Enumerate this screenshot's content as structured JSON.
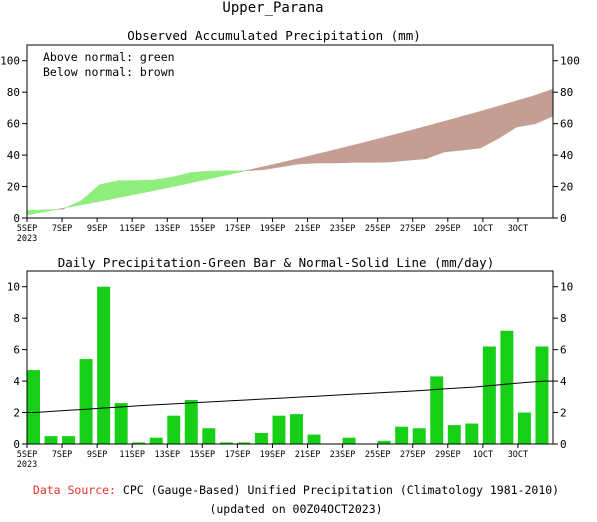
{
  "title": "Upper_Parana",
  "colors": {
    "above": "#90ee7f",
    "below": "#c49d93",
    "bar": "#18cf18",
    "normal_line": "#000000",
    "source_label": "#e8302a"
  },
  "footer": {
    "source_label": "Data Source:",
    "source_text": " CPC (Gauge-Based) Unified Precipitation (Climatology 1981-2010)",
    "updated": "(updated on 00Z04OCT2023)"
  },
  "chart_data": [
    {
      "type": "area",
      "title": "Observed Accumulated Precipitation (mm)",
      "annotations": [
        "Above normal: green",
        "Below normal: brown"
      ],
      "ylim": [
        0,
        110
      ],
      "yticks": [
        0,
        20,
        40,
        60,
        80,
        100
      ],
      "xlim": [
        0,
        30
      ],
      "x_tick_positions": [
        0,
        2,
        4,
        6,
        8,
        10,
        12,
        14,
        16,
        18,
        20,
        22,
        24,
        26,
        28
      ],
      "x_tick_labels": [
        "5SEP",
        "7SEP",
        "9SEP",
        "11SEP",
        "13SEP",
        "15SEP",
        "17SEP",
        "19SEP",
        "21SEP",
        "23SEP",
        "25SEP",
        "27SEP",
        "29SEP",
        "1OCT",
        "3OCT"
      ],
      "x_year_label": "2023",
      "series": [
        {
          "name": "Observed",
          "values": [
            4.7,
            5.2,
            5.7,
            11.1,
            21.1,
            23.7,
            23.8,
            24.2,
            26.0,
            28.8,
            29.8,
            29.9,
            30.0,
            30.7,
            32.5,
            34.4,
            35.0,
            35.0,
            35.4,
            35.4,
            35.6,
            36.7,
            37.7,
            42.0,
            43.2,
            44.5,
            50.7,
            57.9,
            59.9,
            64.8
          ]
        },
        {
          "name": "Normal",
          "values": [
            2.0,
            4.1,
            6.2,
            8.4,
            10.6,
            12.9,
            15.2,
            17.5,
            19.9,
            22.3,
            24.8,
            27.3,
            29.9,
            32.5,
            35.1,
            37.8,
            40.6,
            43.4,
            46.3,
            49.2,
            52.2,
            55.2,
            58.3,
            61.4,
            64.6,
            67.8,
            71.1,
            74.5,
            77.9,
            81.9
          ]
        }
      ]
    },
    {
      "type": "bar",
      "title": "Daily Precipitation-Green Bar & Normal-Solid Line (mm/day)",
      "ylim": [
        0,
        11
      ],
      "yticks": [
        0,
        2,
        4,
        6,
        8,
        10
      ],
      "xlim": [
        0,
        30
      ],
      "x_tick_positions": [
        0,
        2,
        4,
        6,
        8,
        10,
        12,
        14,
        16,
        18,
        20,
        22,
        24,
        26,
        28
      ],
      "x_tick_labels": [
        "5SEP",
        "7SEP",
        "9SEP",
        "11SEP",
        "13SEP",
        "15SEP",
        "17SEP",
        "19SEP",
        "21SEP",
        "23SEP",
        "25SEP",
        "27SEP",
        "29SEP",
        "1OCT",
        "3OCT"
      ],
      "x_year_label": "2023",
      "series": [
        {
          "name": "Daily Precipitation",
          "values": [
            4.7,
            0.5,
            0.5,
            5.4,
            10.0,
            2.6,
            0.1,
            0.4,
            1.8,
            2.8,
            1.0,
            0.1,
            0.1,
            0.7,
            1.8,
            1.9,
            0.6,
            0.0,
            0.4,
            0.0,
            0.2,
            1.1,
            1.0,
            4.3,
            1.2,
            1.3,
            6.2,
            7.2,
            2.0,
            6.2
          ]
        },
        {
          "name": "Normal",
          "values": [
            2.0,
            2.08,
            2.15,
            2.22,
            2.3,
            2.37,
            2.44,
            2.5,
            2.56,
            2.62,
            2.68,
            2.74,
            2.8,
            2.86,
            2.92,
            2.98,
            3.04,
            3.1,
            3.16,
            3.22,
            3.28,
            3.34,
            3.4,
            3.48,
            3.55,
            3.62,
            3.72,
            3.82,
            3.92,
            4.0
          ]
        }
      ]
    }
  ]
}
